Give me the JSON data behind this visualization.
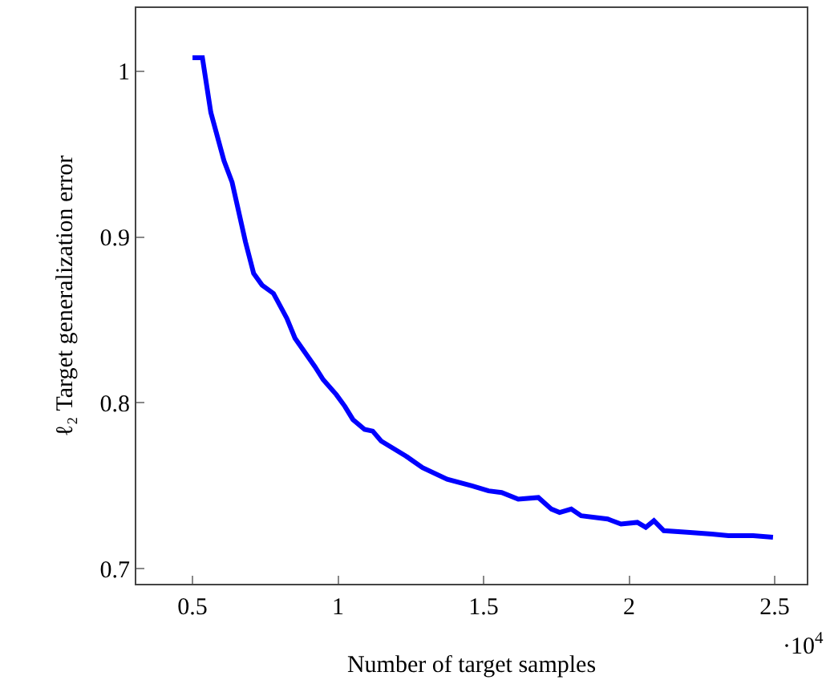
{
  "chart_data": {
    "type": "line",
    "xlabel": "Number of target samples",
    "ylabel": "ℓ₂ Target generalization error",
    "annotations": [
      "·10$^{4}$"
    ],
    "xlim": [
      0.307,
      2.61
    ],
    "ylim": [
      0.691,
      1.038
    ],
    "xticks": [
      0.5,
      1,
      1.5,
      2,
      2.5
    ],
    "yticks": [
      0.7,
      0.8,
      0.9,
      1
    ],
    "marker": "none",
    "line_style": "solid",
    "series": [
      {
        "color": "#0000ff",
        "x": [
          0.5,
          0.534,
          0.563,
          0.608,
          0.636,
          0.682,
          0.71,
          0.739,
          0.778,
          0.824,
          0.852,
          0.892,
          0.92,
          0.949,
          0.994,
          1.023,
          1.051,
          1.091,
          1.119,
          1.148,
          1.233,
          1.29,
          1.375,
          1.46,
          1.517,
          1.562,
          1.619,
          1.688,
          1.733,
          1.761,
          1.801,
          1.835,
          1.926,
          1.972,
          2.028,
          2.057,
          2.085,
          2.119,
          2.199,
          2.284,
          2.341,
          2.426,
          2.494
        ],
        "values": [
          1.008,
          1.008,
          0.975,
          0.946,
          0.933,
          0.897,
          0.878,
          0.871,
          0.866,
          0.851,
          0.839,
          0.829,
          0.822,
          0.814,
          0.805,
          0.798,
          0.79,
          0.784,
          0.783,
          0.777,
          0.768,
          0.761,
          0.754,
          0.75,
          0.747,
          0.746,
          0.742,
          0.743,
          0.736,
          0.734,
          0.736,
          0.732,
          0.73,
          0.727,
          0.728,
          0.725,
          0.729,
          0.723,
          0.722,
          0.721,
          0.72,
          0.72,
          0.719
        ]
      }
    ]
  }
}
